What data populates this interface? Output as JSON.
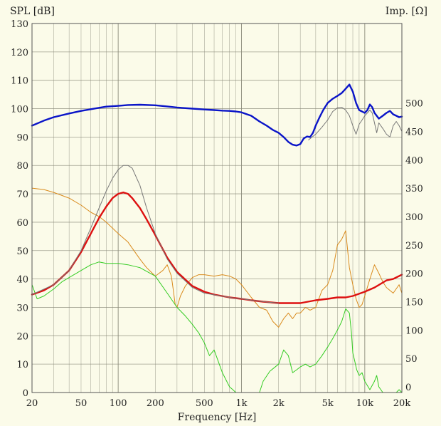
{
  "chart_data": {
    "type": "line",
    "title": "",
    "xlabel": "Frequency [Hz]",
    "ylabel_left": "SPL [dB]",
    "ylabel_right": "Imp. [Ω]",
    "x_scale": "log",
    "xlim": [
      20,
      20000
    ],
    "ylim_left": [
      0,
      130
    ],
    "ylim_right": [
      -10,
      640
    ],
    "grid": true,
    "x_ticks": [
      {
        "value": 20,
        "label": "20"
      },
      {
        "value": 50,
        "label": "50"
      },
      {
        "value": 100,
        "label": "100"
      },
      {
        "value": 200,
        "label": "200"
      },
      {
        "value": 500,
        "label": "500"
      },
      {
        "value": 1000,
        "label": "1k"
      },
      {
        "value": 2000,
        "label": "2k"
      },
      {
        "value": 5000,
        "label": "5k"
      },
      {
        "value": 10000,
        "label": "10k"
      },
      {
        "value": 20000,
        "label": "20k"
      }
    ],
    "y_ticks_left": [
      "0",
      "10",
      "20",
      "30",
      "40",
      "50",
      "60",
      "70",
      "80",
      "90",
      "100",
      "110",
      "120",
      "130"
    ],
    "y_ticks_right": [
      0,
      50,
      100,
      150,
      200,
      250,
      300,
      350,
      400,
      450,
      500
    ],
    "colors": {
      "background": "#fbfbe9",
      "grid": "#8a8a7a",
      "blue": "#0a14c8",
      "red": "#dd1010",
      "gray": "#777777",
      "orange": "#d98a1c",
      "green": "#33cc22"
    },
    "series": [
      {
        "color": "blue",
        "axis": "left",
        "width": 2.4,
        "x": [
          20,
          25,
          30,
          40,
          50,
          60,
          70,
          80,
          100,
          120,
          150,
          200,
          250,
          300,
          400,
          500,
          600,
          700,
          800,
          900,
          1000,
          1200,
          1400,
          1600,
          1800,
          2000,
          2200,
          2400,
          2600,
          2800,
          3000,
          3200,
          3400,
          3600,
          3800,
          4000,
          4300,
          4600,
          5000,
          5500,
          6000,
          6500,
          7000,
          7500,
          8000,
          8500,
          9000,
          9500,
          10000,
          10500,
          11000,
          11500,
          12000,
          12500,
          13000,
          14000,
          15000,
          16000,
          17000,
          18000,
          19000,
          20000
        ],
        "y": [
          94,
          95.8,
          97,
          98.3,
          99.2,
          99.8,
          100.3,
          100.7,
          101,
          101.3,
          101.4,
          101.2,
          100.8,
          100.4,
          100,
          99.7,
          99.5,
          99.3,
          99.2,
          99,
          98.7,
          97.5,
          95.5,
          94,
          92.5,
          91.5,
          90,
          88.3,
          87.3,
          87,
          87.5,
          89.5,
          90.2,
          90,
          91.5,
          94,
          97,
          99.5,
          102,
          103.5,
          104.5,
          105.5,
          107,
          108.5,
          106,
          102,
          99.5,
          99,
          98.5,
          99.5,
          101.5,
          100.5,
          98.5,
          97.5,
          96.5,
          97.5,
          98.5,
          99.2,
          98,
          97.5,
          97,
          97.2
        ]
      },
      {
        "color": "gray",
        "axis": "left",
        "width": 1,
        "x": [
          3500,
          4000,
          4500,
          5000,
          5500,
          6000,
          6500,
          7000,
          7500,
          8000,
          8500,
          9000,
          9500,
          10000,
          10500,
          11000,
          11500,
          12000,
          12500,
          13000,
          14000,
          15000,
          16000,
          17000,
          18000,
          19000,
          20000
        ],
        "y": [
          89,
          91,
          93.5,
          96,
          99,
          100.3,
          100.5,
          99.5,
          97.5,
          94,
          91,
          94.5,
          96,
          97.5,
          98.5,
          99.5,
          98.5,
          95,
          91.5,
          95,
          93,
          91,
          90,
          94,
          95.5,
          94,
          92
        ]
      },
      {
        "color": "orange",
        "axis": "left",
        "width": 1,
        "x": [
          20,
          25,
          30,
          40,
          50,
          60,
          70,
          80,
          100,
          120,
          150,
          170,
          200,
          230,
          250,
          270,
          280,
          290,
          300,
          320,
          350,
          400,
          450,
          500,
          600,
          700,
          800,
          900,
          1000,
          1200,
          1400,
          1600,
          1800,
          2000,
          2200,
          2400,
          2600,
          2800,
          3000,
          3300,
          3600,
          4000,
          4500,
          5000,
          5500,
          6000,
          6500,
          7000,
          7500,
          8000,
          8500,
          9000,
          9500,
          10000,
          11000,
          12000,
          13000,
          14000,
          15000,
          17000,
          19000,
          20000
        ],
        "y": [
          72,
          71.5,
          70.5,
          68.5,
          66,
          63.5,
          62,
          60,
          56,
          53,
          47,
          44,
          41,
          43,
          45,
          41,
          36,
          31,
          30,
          34,
          37.5,
          40.5,
          41.5,
          41.5,
          41,
          41.5,
          41,
          40,
          38,
          33.5,
          30,
          29,
          25,
          23,
          26,
          28,
          26,
          28,
          28,
          30,
          29,
          30,
          36,
          38,
          43,
          52,
          54,
          57,
          44,
          38,
          33,
          30,
          31,
          34,
          40,
          45,
          42,
          39,
          37,
          35,
          38,
          35
        ]
      },
      {
        "color": "green",
        "axis": "left",
        "width": 1,
        "x": [
          20,
          22,
          25,
          30,
          35,
          40,
          50,
          60,
          70,
          80,
          100,
          120,
          150,
          200,
          250,
          300,
          350,
          400,
          450,
          500,
          550,
          600,
          700,
          800,
          850,
          900,
          1000,
          1100,
          1200,
          1300,
          1400,
          1500,
          1700,
          2000,
          2200,
          2400,
          2600,
          2800,
          3000,
          3300,
          3600,
          4000,
          4500,
          5000,
          5500,
          6000,
          6500,
          7000,
          7500,
          7800,
          8000,
          8300,
          8600,
          9000,
          9500,
          10000,
          11000,
          12000,
          12500,
          13000,
          14000,
          15000,
          16000,
          17000,
          18000,
          19000,
          20000
        ],
        "y": [
          38,
          33,
          34,
          36.5,
          39,
          40.5,
          43,
          45,
          46,
          45.5,
          45.5,
          45,
          44,
          41,
          35,
          30,
          27,
          24,
          21,
          17.5,
          13,
          15,
          7,
          2,
          1,
          0,
          0,
          0,
          0,
          0,
          0,
          4,
          7.5,
          10,
          15,
          13,
          7,
          8,
          9,
          10,
          9,
          10,
          13,
          16,
          19,
          22,
          25,
          29.5,
          28,
          21,
          14,
          11,
          8,
          6,
          7,
          4,
          1,
          4,
          6,
          2,
          0,
          0,
          0,
          0,
          0,
          1,
          0
        ]
      },
      {
        "color": "red",
        "axis": "left",
        "width": 2.4,
        "x": [
          20,
          25,
          30,
          40,
          50,
          60,
          70,
          80,
          90,
          100,
          110,
          120,
          130,
          150,
          170,
          200,
          250,
          300,
          400,
          500,
          600,
          800,
          1000,
          1200,
          1500,
          2000,
          2500,
          3000,
          4000,
          5000,
          6000,
          7000,
          8000,
          10000,
          12000,
          15000,
          17000,
          20000
        ],
        "y": [
          34.5,
          36,
          38,
          43,
          49.5,
          56,
          61.5,
          65.5,
          68.5,
          70,
          70.5,
          70,
          68.5,
          65,
          61,
          55.5,
          47.5,
          42.5,
          37.5,
          35.5,
          34.5,
          33.5,
          33,
          32.5,
          32,
          31.5,
          31.5,
          31.5,
          32.5,
          33,
          33.5,
          33.5,
          34,
          35.5,
          37,
          39.5,
          40,
          41.5
        ]
      },
      {
        "color": "gray",
        "axis": "left",
        "width": 1,
        "x": [
          20,
          30,
          40,
          50,
          60,
          70,
          80,
          90,
          100,
          110,
          120,
          130,
          150,
          170,
          200,
          250,
          300,
          400,
          500,
          800,
          1000,
          1500,
          2000
        ],
        "y": [
          34.5,
          38,
          43,
          50,
          58,
          65,
          71,
          75.5,
          78.5,
          80,
          80,
          79,
          73,
          65,
          56,
          47,
          42,
          37,
          35,
          33.5,
          33,
          32,
          31.5
        ]
      }
    ]
  }
}
